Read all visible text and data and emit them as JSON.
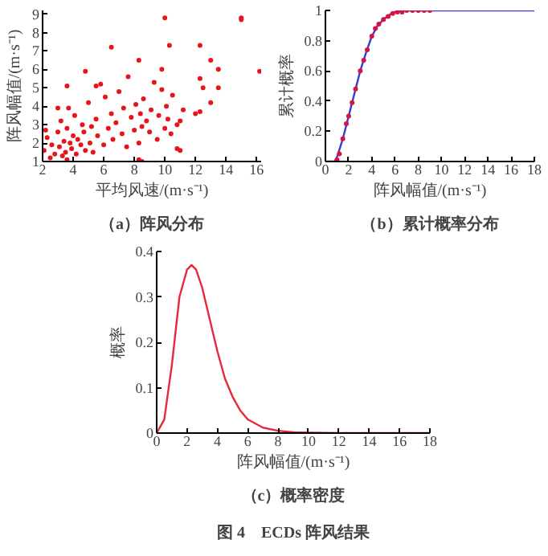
{
  "chart_data": [
    {
      "type": "scatter",
      "title": "（a）阵风分布",
      "xlabel": "平均风速/(m·s⁻¹)",
      "ylabel": "阵风幅值/(m·s⁻¹)",
      "xlim": [
        2,
        16.3
      ],
      "ylim": [
        1,
        9.2
      ],
      "xticks": [
        2,
        4,
        6,
        8,
        10,
        12,
        14,
        16
      ],
      "yticks": [
        1,
        2,
        3,
        4,
        5,
        6,
        7,
        8,
        9
      ],
      "marker": "circle",
      "grid": false,
      "series": [
        {
          "color": "#e8141c",
          "x": [
            2.1,
            2.3,
            2.5,
            2.6,
            2.8,
            3.0,
            3.1,
            3.2,
            3.3,
            3.4,
            3.5,
            3.6,
            3.6,
            3.7,
            3.8,
            3.9,
            4.0,
            4.1,
            4.2,
            4.3,
            4.5,
            4.6,
            4.7,
            4.8,
            5.0,
            5.1,
            5.2,
            5.3,
            5.5,
            5.6,
            5.8,
            6.0,
            6.1,
            6.3,
            6.5,
            6.6,
            6.8,
            7.0,
            7.2,
            7.3,
            7.5,
            7.6,
            7.8,
            8.0,
            8.1,
            8.3,
            8.4,
            8.5,
            8.6,
            8.8,
            9.0,
            9.1,
            9.3,
            9.5,
            9.6,
            9.8,
            10.0,
            10.1,
            10.2,
            10.4,
            10.5,
            10.8,
            11.0,
            11.0,
            10.8,
            11.2,
            12.0,
            12.3,
            12.5,
            12.3,
            13.0,
            13.5,
            13.5,
            15.0,
            15.0,
            16.2,
            10.0,
            10.3,
            6.5,
            8.3,
            4.8,
            3.6,
            12.3,
            9.8,
            13.0,
            8.5,
            8.3,
            2.2,
            3.0,
            5.5
          ],
          "values": [
            1.6,
            2.3,
            1.2,
            1.9,
            1.4,
            2.6,
            1.8,
            3.2,
            1.3,
            2.1,
            1.5,
            2.8,
            1.1,
            3.9,
            2.0,
            1.7,
            2.4,
            3.5,
            1.4,
            2.2,
            1.9,
            3.0,
            2.6,
            1.6,
            4.2,
            2.0,
            2.9,
            1.5,
            3.3,
            2.4,
            5.2,
            1.9,
            4.5,
            2.8,
            3.6,
            2.2,
            3.1,
            4.8,
            2.5,
            3.9,
            1.8,
            5.6,
            3.4,
            2.7,
            4.1,
            2.0,
            3.6,
            2.9,
            4.4,
            3.2,
            2.6,
            3.8,
            5.3,
            2.2,
            3.5,
            4.9,
            2.8,
            4.0,
            3.3,
            2.5,
            4.6,
            3.0,
            3.2,
            1.6,
            1.7,
            3.8,
            3.6,
            5.5,
            5.0,
            3.7,
            4.2,
            6.0,
            5.0,
            8.8,
            8.7,
            5.9,
            8.8,
            7.3,
            7.2,
            6.5,
            5.9,
            5.1,
            7.3,
            6.0,
            6.5,
            1.0,
            1.1,
            2.7,
            3.9,
            5.1
          ]
        }
      ]
    },
    {
      "type": "line",
      "title": "（b）累计概率分布",
      "xlabel": "阵风幅值/(m·s⁻¹)",
      "ylabel": "累计概率",
      "xlim": [
        0,
        18
      ],
      "ylim": [
        0,
        1
      ],
      "xticks": [
        0,
        2,
        4,
        6,
        8,
        10,
        12,
        14,
        16,
        18
      ],
      "yticks": [
        0,
        0.2,
        0.4,
        0.6,
        0.8,
        1
      ],
      "grid": false,
      "series": [
        {
          "type": "line",
          "color": "#3a3adb",
          "marker": "none",
          "x": [
            0,
            0.8,
            1,
            1.5,
            2,
            2.5,
            3,
            3.5,
            4,
            4.5,
            5,
            5.5,
            6,
            6.5,
            7,
            18
          ],
          "values": [
            0,
            0,
            0.03,
            0.15,
            0.3,
            0.45,
            0.6,
            0.72,
            0.83,
            0.9,
            0.94,
            0.97,
            0.99,
            1,
            1,
            1
          ]
        },
        {
          "type": "scatter",
          "color": "#d8143c",
          "marker": "circle",
          "x": [
            1,
            1.2,
            1.5,
            1.8,
            2,
            2.3,
            2.6,
            3,
            3.3,
            3.6,
            4,
            4.3,
            4.6,
            5,
            5.4,
            5.8,
            6.2,
            6.6,
            7,
            7.5,
            8,
            8.5,
            9
          ],
          "values": [
            0.01,
            0.05,
            0.15,
            0.25,
            0.3,
            0.39,
            0.48,
            0.6,
            0.67,
            0.74,
            0.83,
            0.88,
            0.91,
            0.94,
            0.96,
            0.98,
            0.99,
            0.99,
            1,
            1,
            1,
            1,
            1
          ]
        }
      ]
    },
    {
      "type": "line",
      "title": "（c）概率密度",
      "xlabel": "阵风幅值/(m·s⁻¹)",
      "ylabel": "概率",
      "xlim": [
        0,
        18
      ],
      "ylim": [
        0,
        0.4
      ],
      "xticks": [
        0,
        2,
        4,
        6,
        8,
        10,
        12,
        14,
        16,
        18
      ],
      "yticks": [
        0,
        0.1,
        0.2,
        0.3,
        0.4
      ],
      "grid": false,
      "annotations": [
        "图 4　ECDs 阵风结果"
      ],
      "series": [
        {
          "type": "line",
          "color": "#e8283c",
          "marker": "none",
          "x": [
            0,
            0.5,
            1,
            1.5,
            2,
            2.3,
            2.6,
            3,
            3.5,
            4,
            4.5,
            5,
            5.5,
            6,
            7,
            8,
            9,
            10,
            12,
            14,
            18
          ],
          "values": [
            0,
            0.03,
            0.15,
            0.3,
            0.36,
            0.37,
            0.36,
            0.32,
            0.25,
            0.18,
            0.12,
            0.08,
            0.05,
            0.03,
            0.012,
            0.005,
            0.002,
            0.001,
            0,
            0,
            0
          ]
        }
      ]
    }
  ]
}
